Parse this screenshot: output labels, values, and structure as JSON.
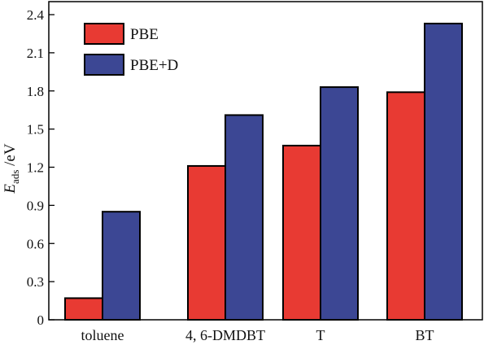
{
  "chart_data": {
    "type": "bar",
    "categories": [
      "toluene",
      "4, 6-DMDBT",
      "T",
      "BT"
    ],
    "series": [
      {
        "name": "PBE",
        "values": [
          0.17,
          1.21,
          1.37,
          1.79
        ],
        "color": "#e83a33"
      },
      {
        "name": "PBE+D",
        "values": [
          0.85,
          1.61,
          1.83,
          2.33
        ],
        "color": "#3c4794"
      }
    ],
    "ylabel_main": "E",
    "ylabel_sub": "ads",
    "ylabel_unit": " /eV",
    "ylim": [
      0,
      2.4
    ],
    "yticks": [
      "0",
      "0.3",
      "0.6",
      "0.9",
      "1.2",
      "1.5",
      "1.8",
      "2.1",
      "2.4"
    ],
    "legend_position": "top-left",
    "grid": false
  }
}
